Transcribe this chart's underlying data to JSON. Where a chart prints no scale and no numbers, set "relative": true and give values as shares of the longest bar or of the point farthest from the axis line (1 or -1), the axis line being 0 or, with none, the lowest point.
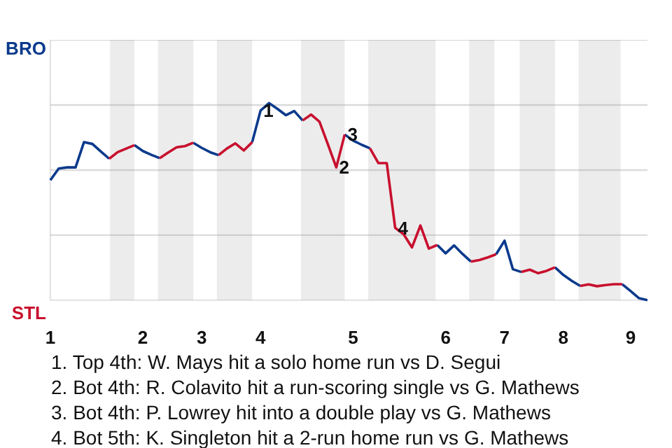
{
  "chart_data": {
    "type": "line",
    "relative": true,
    "marker": "none",
    "line_style": "solid",
    "categories": [
      "1",
      null,
      null,
      null,
      null,
      null,
      null,
      null,
      null,
      null,
      null,
      "2",
      null,
      null,
      null,
      null,
      null,
      null,
      "3",
      null,
      null,
      null,
      null,
      null,
      null,
      "4",
      null,
      null,
      null,
      null,
      null,
      null,
      null,
      null,
      null,
      null,
      "5",
      null,
      null,
      null,
      null,
      null,
      null,
      null,
      null,
      null,
      null,
      "6",
      null,
      null,
      null,
      null,
      null,
      null,
      "7",
      null,
      null,
      null,
      null,
      null,
      null,
      "8",
      null,
      null,
      null,
      null,
      null,
      null,
      null,
      "9",
      null,
      null
    ],
    "series": [
      {
        "color": "#0b3a8c",
        "values": [
          0.609,
          0.668,
          0.674,
          0.674,
          0.802,
          0.793,
          0.755,
          0.718,
          null,
          null,
          0.787,
          0.757,
          0.738,
          0.721,
          null,
          null,
          null,
          0.799,
          0.773,
          0.751,
          0.736,
          null,
          null,
          null,
          0.802,
          0.963,
          1,
          0.971,
          0.939,
          0.96,
          0.912,
          null,
          null,
          null,
          null,
          0.841,
          0.81,
          0.789,
          0.771,
          null,
          null,
          null,
          null,
          null,
          null,
          null,
          0.28,
          0.238,
          0.278,
          0.235,
          0.196,
          null,
          null,
          0.233,
          0.302,
          0.157,
          0.143,
          null,
          null,
          null,
          0.167,
          0.128,
          0.098,
          0.072,
          null,
          null,
          null,
          null,
          0.081,
          0.046,
          0.01,
          0
        ]
      },
      {
        "color": "#c8102e",
        "values": [
          null,
          null,
          null,
          null,
          null,
          null,
          null,
          0.718,
          0.751,
          0.769,
          0.787,
          null,
          null,
          0.721,
          0.749,
          0.776,
          0.782,
          0.799,
          null,
          null,
          0.736,
          0.77,
          0.796,
          0.76,
          0.802,
          null,
          null,
          null,
          null,
          null,
          0.912,
          0.942,
          0.906,
          0.791,
          0.674,
          0.841,
          null,
          null,
          0.771,
          0.696,
          0.696,
          0.367,
          0.335,
          0.268,
          0.379,
          0.262,
          0.28,
          null,
          null,
          null,
          0.196,
          0.204,
          0.217,
          0.233,
          null,
          null,
          0.143,
          0.155,
          0.137,
          0.149,
          0.167,
          null,
          null,
          0.072,
          0.08,
          0.071,
          0.077,
          0.081,
          0.081,
          null,
          null,
          null
        ]
      }
    ],
    "annotations": [
      "BRO",
      "STL",
      {
        "text": "1",
        "y": 0.963
      },
      {
        "text": "2",
        "y": 0.674
      },
      {
        "text": "3",
        "y": 0.841
      },
      {
        "text": "4",
        "y": 0.367
      },
      "1. Top 4th: W. Mays hit a solo home run vs D. Segui",
      "2. Bot 4th: R. Colavito hit a run-scoring single vs G. Mathews",
      "3. Bot 4th: P. Lowrey hit into a double play vs G. Mathews",
      "4. Bot 5th: K. Singleton hit a 2-run home run vs G. Mathews"
    ]
  }
}
